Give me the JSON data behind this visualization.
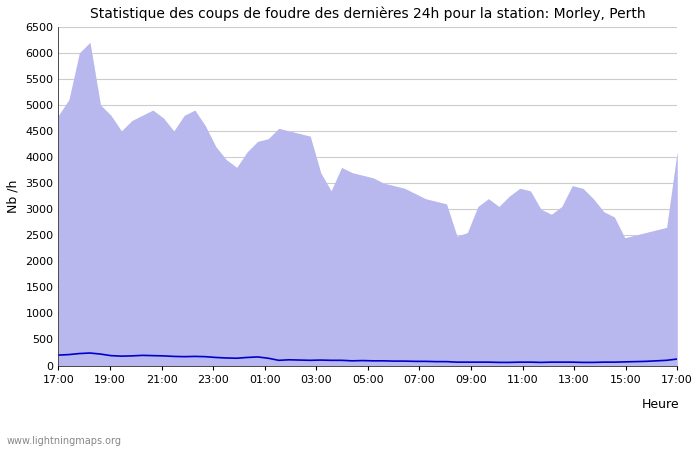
{
  "title": "Statistique des coups de foudre des dernières 24h pour la station: Morley, Perth",
  "xlabel": "Heure",
  "ylabel": "Nb /h",
  "watermark": "www.lightningmaps.org",
  "x_ticks": [
    "17:00",
    "19:00",
    "21:00",
    "23:00",
    "01:00",
    "03:00",
    "05:00",
    "07:00",
    "09:00",
    "11:00",
    "13:00",
    "15:00",
    "17:00"
  ],
  "ylim": [
    0,
    6500
  ],
  "yticks": [
    0,
    500,
    1000,
    1500,
    2000,
    2500,
    3000,
    3500,
    4000,
    4500,
    5000,
    5500,
    6000,
    6500
  ],
  "total_foudre": [
    4800,
    5100,
    6000,
    6200,
    5000,
    4800,
    4500,
    4700,
    4800,
    4900,
    4750,
    4500,
    4800,
    4900,
    4600,
    4200,
    3950,
    3800,
    4100,
    4300,
    4350,
    4550,
    4500,
    4450,
    4400,
    3700,
    3350,
    3800,
    3700,
    3650,
    3600,
    3500,
    3450,
    3400,
    3300,
    3200,
    3150,
    3100,
    2480,
    2550,
    3050,
    3200,
    3050,
    3250,
    3400,
    3350,
    3000,
    2900,
    3050,
    3450,
    3400,
    3200,
    2950,
    2850,
    2450,
    2500,
    2550,
    2600,
    2650,
    4100
  ],
  "total_foudre_color": "#ddddf5",
  "detected_foudre": [
    4800,
    5100,
    6000,
    6200,
    5000,
    4800,
    4500,
    4700,
    4800,
    4900,
    4750,
    4500,
    4800,
    4900,
    4600,
    4200,
    3950,
    3800,
    4100,
    4300,
    4350,
    4550,
    4500,
    4450,
    4400,
    3700,
    3350,
    3800,
    3700,
    3650,
    3600,
    3500,
    3450,
    3400,
    3300,
    3200,
    3150,
    3100,
    2480,
    2550,
    3050,
    3200,
    3050,
    3250,
    3400,
    3350,
    3000,
    2900,
    3050,
    3450,
    3400,
    3200,
    2950,
    2850,
    2450,
    2500,
    2550,
    2600,
    2650,
    4100
  ],
  "detected_foudre_color": "#b8b8ee",
  "moyenne": [
    200,
    210,
    230,
    240,
    220,
    190,
    180,
    185,
    195,
    190,
    185,
    175,
    170,
    175,
    170,
    155,
    145,
    140,
    155,
    165,
    140,
    100,
    110,
    105,
    100,
    105,
    100,
    100,
    90,
    95,
    90,
    90,
    85,
    85,
    80,
    80,
    75,
    75,
    65,
    65,
    65,
    65,
    60,
    60,
    65,
    65,
    60,
    65,
    65,
    65,
    60,
    60,
    65,
    65,
    70,
    75,
    80,
    90,
    100,
    125
  ],
  "moyenne_color": "#0000cc",
  "bg_color": "#ffffff",
  "plot_bg_color": "#ffffff",
  "grid_color": "#cccccc",
  "title_fontsize": 10,
  "tick_fontsize": 8,
  "label_fontsize": 9,
  "legend_fontsize": 8.5
}
